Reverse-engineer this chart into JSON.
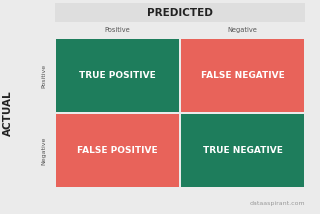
{
  "title_predicted": "PREDICTED",
  "title_actual": "ACTUAL",
  "col_labels": [
    "Positive",
    "Negative"
  ],
  "row_labels": [
    "Positive",
    "Negative"
  ],
  "cells": [
    [
      "TRUE POSITIVE",
      "FALSE NEGATIVE"
    ],
    [
      "FALSE POSITIVE",
      "TRUE NEGATIVE"
    ]
  ],
  "cell_colors": [
    [
      "#1e7d5c",
      "#e8635a"
    ],
    [
      "#e8635a",
      "#1e7d5c"
    ]
  ],
  "text_color": "#ffffff",
  "bg_color": "#ebebeb",
  "header_bg": "#dedede",
  "cell_text_fontsize": 6.5,
  "label_fontsize": 4.8,
  "title_fontsize": 7.5,
  "actual_fontsize": 7.5,
  "row_label_fontsize": 4.5,
  "watermark": "dataaspirant.com",
  "watermark_fontsize": 4.5
}
